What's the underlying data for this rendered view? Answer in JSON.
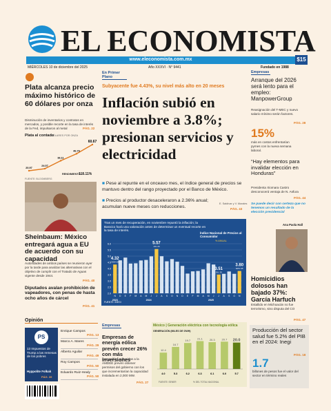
{
  "masthead": {
    "title": "EL ECONOMISTA",
    "url": "www.eleconomista.com.mx",
    "date": "MIÉRCOLES 10 de diciembre del 2025",
    "issue": "Año XXXVI · N° 9441",
    "founded": "Fundado en 1988",
    "price": "$15"
  },
  "silver": {
    "headline": "Plata alcanza precio máximo histórico de 60 dólares por onza",
    "bullet": "Disminución de inventarios y contratos en mercados, y posible recorte en la tasa de interés de la Fed, impulsaron al metal",
    "page": "PÁG. 22",
    "chart_title": "Plata al contado",
    "chart_sub": "DÓLARES POR ONZA",
    "values": [
      20.97,
      24.07,
      36.11,
      46.7,
      60.67
    ],
    "value_labels": [
      "20.97",
      "24.07",
      "36.11",
      "46.70",
      "60.67"
    ],
    "source": "FUENTE: BLOOMBERG",
    "change_label": "RENDIMIENTO:",
    "change": "118.11%"
  },
  "sheinbaum": {
    "headline": "Sheinbaum: México entregará agua a EU de acuerdo con su capacidad",
    "bullet": "Autoridades de ambos países se reunieron ayer por la tarde para analizar las alternativas con el objetivo de cumplir con el Tratado de Aguas vigente desde 1944.",
    "page": "PÁG. 40"
  },
  "vapes": {
    "headline": "Diputados avalan prohibición de vapeadores, con penas de hasta ocho años de cárcel",
    "page": "PÁG. 41"
  },
  "opinion": {
    "label": "Opinión",
    "box": "13 Impuestos de Trump a las remesas de los pobres",
    "box_author": "Hyppolite Folkak",
    "box_page": "PÁG. 39",
    "columnists": [
      {
        "name": "Enrique Campos",
        "page": "PÁG. 13"
      },
      {
        "name": "Marco A. Mares",
        "page": "PÁG. 29"
      },
      {
        "name": "Alberto Aguilar",
        "page": "PÁG. 49"
      },
      {
        "name": "Roy Campos",
        "page": "PÁG. 50"
      },
      {
        "name": "Eduardo Ruiz-Healy",
        "page": "PÁG. 50"
      }
    ]
  },
  "main": {
    "section": "En Primer Plano",
    "kicker": "Subyacente fue 4.43%, su nivel más alto en 20 meses",
    "headline": "Inflación subió en noviembre a 3.8%; presionan servicios y electricidad",
    "bullets": [
      "Pese al repunte en el onceavo mes, el índice general de precios se mantuvo dentro del rango proyectado por el Banco de México.",
      "Precios al productor desaceleraron a 2.36% anual; acumulan nueve meses con reducciones."
    ],
    "credit": "E. Saldívar y V. Morales",
    "page": "PÁG. 43",
    "chart": {
      "intro": "Tras un mes de recuperación, en noviembre repuntó la inflación; la Banxico hará una valoración antes de determinar un eventual recorte en la tasa de interés.",
      "title": "Índice Nacional de Precios al Consumidor",
      "unit": "% ANUAL",
      "source": "FUENTE: INEGI",
      "months": [
        "N",
        "D",
        "E",
        "F",
        "M",
        "A",
        "M",
        "J",
        "J",
        "A",
        "S",
        "O",
        "N",
        "D",
        "E",
        "F",
        "M",
        "A",
        "M",
        "J",
        "J",
        "A",
        "S",
        "O",
        "N"
      ],
      "years": [
        "2023",
        "2024",
        "2025"
      ],
      "values": [
        4.32,
        4.66,
        4.88,
        4.4,
        4.42,
        4.65,
        4.69,
        4.98,
        5.57,
        4.99,
        4.58,
        4.76,
        4.55,
        4.21,
        3.59,
        3.77,
        3.8,
        3.93,
        4.42,
        4.32,
        3.51,
        3.57,
        3.76,
        3.57,
        3.8
      ],
      "ylim": [
        2.0,
        6.0
      ],
      "yticks": [
        {
          "value": 2.0,
          "label": "2.0"
        },
        2.5,
        {
          "value": 3.0,
          "label": "3.0"
        },
        3.5,
        {
          "value": 4.0,
          "label": "4.0"
        },
        4.5,
        {
          "value": 5.0,
          "label": "5.0"
        },
        5.5,
        {
          "value": 6.0,
          "label": "6.0"
        }
      ],
      "callouts": [
        {
          "index": 0,
          "value_label": "4.32",
          "date": "NOV 23"
        },
        {
          "index": 8,
          "value_label": "5.57",
          "date": "JUL 24"
        },
        {
          "index": 20,
          "value_label": "3.51",
          "date": "JUL 25"
        },
        {
          "index": 24,
          "value_label": "3.80",
          "date": "NOV 25"
        }
      ]
    }
  },
  "energy": {
    "section": "Empresas",
    "headline": "Empresas de energía eólica prevén crecer 26% con más inversiones",
    "bullet": "Compañías adheridas a la AMDEE prevén obtener permisos del gobierno con los que incrementarían la capacidad instalada en 2,000 MW.",
    "page": "PÁG. 27",
    "chart": {
      "title": "México | Generación eléctrica con tecnología eólica",
      "unit": "GENERACIÓN (MILES DE GWH)",
      "values": [
        12.4,
        16.7,
        19.7,
        21.1,
        20.3,
        20.7,
        20.0
      ],
      "value_labels": [
        "12.4",
        "16.7",
        "19.7",
        "21.1",
        "20.3",
        "20.7",
        "20.0"
      ],
      "ylim": [
        0,
        25
      ],
      "shares": [
        "4.0",
        "5.3",
        "6.2",
        "6.3",
        "6.1",
        "6.0",
        "5.7"
      ],
      "share_unit": "% DEL TOTAL NACIONAL",
      "source": "FUENTE: SENER"
    }
  },
  "right": {
    "section": "Empresas",
    "jobs_headline": "Arranque del 2026 será lento para el empleo: ManpowerGroup",
    "jobs_bullet": "Reasignación del T-MEC y nuevo salario mínimo serán factores.",
    "jobs_page": "PÁG. 28",
    "stat": "15%",
    "stat_text": "más en costos enfrentarían pymes con la nueva semana laboral.",
    "honduras_headline": "“Hay elementos para invalidar elección en Honduras”",
    "honduras_bullet": "Presidenta Xiomara Castro desconocerá ventaja de N. Asfura",
    "honduras_page": "PÁG. 44",
    "quote": "Se puede decir con certeza que no tenemos un resultado de la elección presidencial",
    "quote_author": "Ana Paola Hall",
    "crime_headline": "Homicidios dolosos han bajado 37%: García Harfuch",
    "crime_bullet": "Estallido en Michoacán no fue terrorismo, sino disputa del CO",
    "crime_page": "PÁG. 47",
    "health_headline": "Producción del sector salud fue 5.2% del PIB en el 2024: Inegi",
    "health_page": "PÁG. 18",
    "health_stat": "1.7",
    "health_text": "billones de pesos fue el valor del sector en término reales"
  }
}
